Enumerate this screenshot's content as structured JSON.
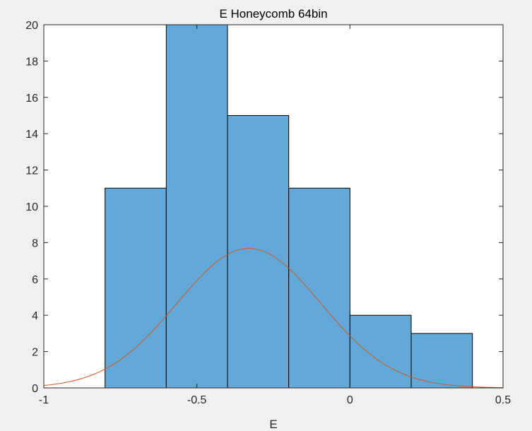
{
  "chart_data": {
    "type": "bar",
    "subtype": "histogram-with-fit",
    "title": "E Honeycomb 64bin",
    "xlabel": "E",
    "ylabel": "",
    "xlim": [
      -1,
      0.5
    ],
    "ylim": [
      0,
      20
    ],
    "xticks": [
      -1,
      -0.5,
      0,
      0.5
    ],
    "xtick_labels": [
      "-1",
      "-0.5",
      "0",
      "0.5"
    ],
    "yticks": [
      0,
      2,
      4,
      6,
      8,
      10,
      12,
      14,
      16,
      18,
      20
    ],
    "ytick_labels": [
      "0",
      "2",
      "4",
      "6",
      "8",
      "10",
      "12",
      "14",
      "16",
      "18",
      "20"
    ],
    "bin_edges": [
      -0.8,
      -0.6,
      -0.4,
      -0.2,
      0,
      0.2,
      0.4
    ],
    "values": [
      11,
      21,
      15,
      11,
      4,
      3
    ],
    "fit_curve": {
      "type": "normal",
      "mean": -0.33,
      "sigma": 0.235,
      "peak": 7.68
    },
    "bar_color": "#62a9d9",
    "bar_edge_color": "#000000",
    "fit_color": "#d9541a",
    "grid": false,
    "legend": "none"
  }
}
